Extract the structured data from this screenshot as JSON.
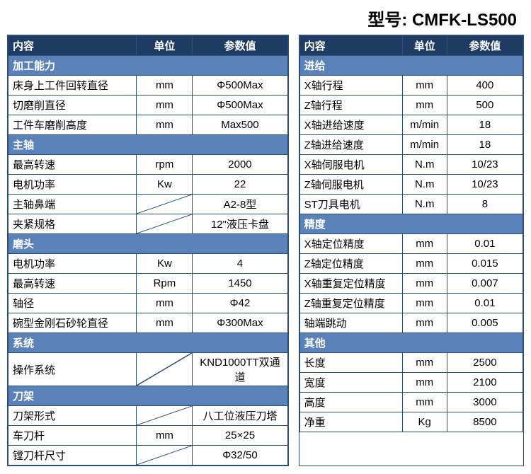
{
  "colors": {
    "header_bg": "#1e3c63",
    "section_bg": "#5a82b8",
    "border": "#2a4d7a",
    "text_dark": "#000000",
    "text_light": "#ffffff"
  },
  "model_label": "型号: CMFK-LS500",
  "headers": {
    "content": "内容",
    "unit": "单位",
    "value": "参数值"
  },
  "left": [
    {
      "type": "section",
      "label": "加工能力"
    },
    {
      "type": "row",
      "name": "床身上工件回转直径",
      "unit": "mm",
      "value": "Φ500Max"
    },
    {
      "type": "row",
      "name": "切磨削直径",
      "unit": "mm",
      "value": "Φ500Max"
    },
    {
      "type": "row",
      "name": "工件车磨削高度",
      "unit": "mm",
      "value": "Max500"
    },
    {
      "type": "section",
      "label": "主轴"
    },
    {
      "type": "row",
      "name": "最高转速",
      "unit": "rpm",
      "value": "2000"
    },
    {
      "type": "row",
      "name": "电机功率",
      "unit": "Kw",
      "value": "22"
    },
    {
      "type": "row",
      "name": "主轴鼻端",
      "unit": "SLASH",
      "value": "A2-8型"
    },
    {
      "type": "row",
      "name": "夹紧规格",
      "unit": "SLASH",
      "value": "12\"液压卡盘"
    },
    {
      "type": "section",
      "label": "磨头"
    },
    {
      "type": "row",
      "name": "电机功率",
      "unit": "Kw",
      "value": "4"
    },
    {
      "type": "row",
      "name": "最高转速",
      "unit": "Rpm",
      "value": "1450"
    },
    {
      "type": "row",
      "name": "轴径",
      "unit": "mm",
      "value": "Φ42"
    },
    {
      "type": "row",
      "name": "碗型金刚石砂轮直径",
      "unit": "mm",
      "value": "Φ300Max"
    },
    {
      "type": "section",
      "label": "系统"
    },
    {
      "type": "row",
      "name": "操作系统",
      "unit": "SLASH",
      "value": "KND1000TT双通道"
    },
    {
      "type": "section",
      "label": "刀架"
    },
    {
      "type": "row",
      "name": "刀架形式",
      "unit": "SLASH",
      "value": "八工位液压刀塔"
    },
    {
      "type": "row",
      "name": "车刀杆",
      "unit": "mm",
      "value": "25×25"
    },
    {
      "type": "row",
      "name": "镗刀杆尺寸",
      "unit": "SLASH",
      "value": "Φ32/50"
    }
  ],
  "right": [
    {
      "type": "section",
      "label": "进给"
    },
    {
      "type": "row",
      "name": "X轴行程",
      "unit": "mm",
      "value": "400"
    },
    {
      "type": "row",
      "name": "Z轴行程",
      "unit": "mm",
      "value": "500"
    },
    {
      "type": "row",
      "name": "X轴进给速度",
      "unit": "m/min",
      "value": "18"
    },
    {
      "type": "row",
      "name": "Z轴进给速度",
      "unit": "m/min",
      "value": "18"
    },
    {
      "type": "row",
      "name": "X轴伺服电机",
      "unit": "N.m",
      "value": "10/23"
    },
    {
      "type": "row",
      "name": "Z轴伺服电机",
      "unit": "N.m",
      "value": "10/23"
    },
    {
      "type": "row",
      "name": "ST刀具电机",
      "unit": "N.m",
      "value": "8"
    },
    {
      "type": "section",
      "label": "精度"
    },
    {
      "type": "row",
      "name": "X轴定位精度",
      "unit": "mm",
      "value": "0.01"
    },
    {
      "type": "row",
      "name": "Z轴定位精度",
      "unit": "mm",
      "value": "0.015"
    },
    {
      "type": "row",
      "name": "X轴重复定位精度",
      "unit": "mm",
      "value": "0.007"
    },
    {
      "type": "row",
      "name": "Z轴重复定位精度",
      "unit": "mm",
      "value": "0.01"
    },
    {
      "type": "row",
      "name": "轴端跳动",
      "unit": "mm",
      "value": "0.005"
    },
    {
      "type": "section",
      "label": "其他"
    },
    {
      "type": "row",
      "name": "长度",
      "unit": "mm",
      "value": "2500"
    },
    {
      "type": "row",
      "name": "宽度",
      "unit": "mm",
      "value": "2100"
    },
    {
      "type": "row",
      "name": "高度",
      "unit": "mm",
      "value": "3000"
    },
    {
      "type": "row",
      "name": "净重",
      "unit": "Kg",
      "value": "8500"
    }
  ]
}
